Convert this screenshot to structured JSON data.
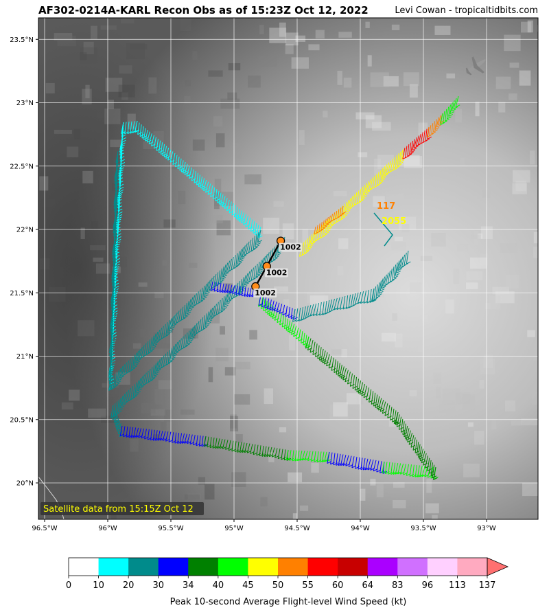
{
  "header": {
    "title": "AF302-0214A-KARL Recon Obs as of 15:23Z Oct 12, 2022",
    "credit": "Levi Cowan - tropicaltidbits.com"
  },
  "map": {
    "lon_range": [
      -96.5,
      -92.5
    ],
    "lat_range": [
      19.75,
      23.7
    ],
    "lat_ticks": [
      "20°N",
      "20.5°N",
      "21°N",
      "21.5°N",
      "22°N",
      "22.5°N",
      "23°N",
      "23.5°N"
    ],
    "lon_ticks": [
      "96.5°W",
      "96°W",
      "95.5°W",
      "95°W",
      "94.5°W",
      "94°W",
      "93.5°W",
      "93°W"
    ],
    "satellite_note": "Satellite data from 15:15Z Oct 12",
    "aircraft_icon": "plane-icon",
    "pressure_obs": [
      {
        "label": "1002",
        "lat": 21.91,
        "lon": -94.63
      },
      {
        "label": "1002",
        "lat": 21.71,
        "lon": -94.74
      },
      {
        "label": "1002",
        "lat": 21.55,
        "lon": -94.83
      }
    ],
    "annotations": [
      {
        "text": "117",
        "color": "#ff8000"
      },
      {
        "text": "2055",
        "color": "#ffff00"
      }
    ]
  },
  "colorbar": {
    "title": "Peak 10-second Average Flight-level Wind Speed (kt)",
    "ticks": [
      "0",
      "10",
      "20",
      "30",
      "34",
      "40",
      "45",
      "50",
      "55",
      "60",
      "64",
      "83",
      "96",
      "113",
      "137"
    ],
    "colors": [
      "#ffffff",
      "#00ffff",
      "#008b8b",
      "#0000ff",
      "#008000",
      "#00ff00",
      "#ffff00",
      "#ff8000",
      "#ff0000",
      "#c80000",
      "#aa00ff",
      "#d070ff",
      "#ffd0ff",
      "#ffaac0"
    ],
    "extend_color": "#ff7070"
  }
}
